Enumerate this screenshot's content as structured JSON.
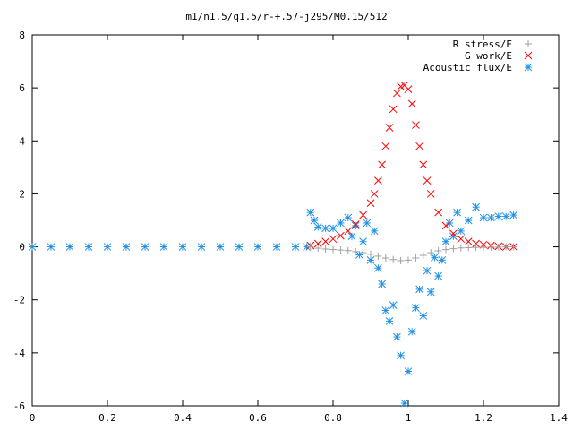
{
  "chart_data": {
    "type": "scatter",
    "title": "m1/n1.5/q1.5/r-+.57-j295/M0.15/512",
    "xlabel": "",
    "ylabel": "",
    "xlim": [
      0,
      1.4
    ],
    "ylim": [
      -6,
      8
    ],
    "x_ticks": [
      "0",
      "0.2",
      "0.4",
      "0.6",
      "0.8",
      "1",
      "1.2",
      "1.4"
    ],
    "y_ticks": [
      "-6",
      "-4",
      "-2",
      "0",
      "2",
      "4",
      "6",
      "8"
    ],
    "grid": false,
    "legend_position": "top-right",
    "series": [
      {
        "name": "R stress/E",
        "marker": "plus",
        "color": "#a0a0a0",
        "x": [
          0.74,
          0.76,
          0.78,
          0.8,
          0.82,
          0.84,
          0.86,
          0.88,
          0.9,
          0.92,
          0.94,
          0.96,
          0.98,
          1.0,
          1.02,
          1.04,
          1.06,
          1.08,
          1.1,
          1.12,
          1.14,
          1.16,
          1.18,
          1.2,
          1.22,
          1.24,
          1.26,
          1.28
        ],
        "y": [
          0.0,
          -0.05,
          -0.08,
          -0.1,
          -0.12,
          -0.14,
          -0.18,
          -0.22,
          -0.28,
          -0.35,
          -0.42,
          -0.48,
          -0.52,
          -0.5,
          -0.42,
          -0.32,
          -0.22,
          -0.15,
          -0.1,
          -0.07,
          -0.04,
          -0.03,
          -0.02,
          -0.02,
          -0.01,
          -0.01,
          0.0,
          0.0
        ]
      },
      {
        "name": "G work/E",
        "marker": "cross",
        "color": "#ff0000",
        "x": [
          0.74,
          0.76,
          0.78,
          0.8,
          0.82,
          0.84,
          0.86,
          0.88,
          0.9,
          0.91,
          0.92,
          0.93,
          0.94,
          0.95,
          0.96,
          0.97,
          0.98,
          0.99,
          1.0,
          1.01,
          1.02,
          1.03,
          1.04,
          1.05,
          1.06,
          1.08,
          1.1,
          1.12,
          1.14,
          1.16,
          1.18,
          1.2,
          1.22,
          1.24,
          1.26,
          1.28
        ],
        "y": [
          0.05,
          0.12,
          0.2,
          0.3,
          0.42,
          0.6,
          0.85,
          1.2,
          1.65,
          2.0,
          2.5,
          3.1,
          3.8,
          4.5,
          5.2,
          5.8,
          6.05,
          6.1,
          5.95,
          5.4,
          4.6,
          3.8,
          3.1,
          2.5,
          2.0,
          1.3,
          0.8,
          0.5,
          0.3,
          0.2,
          0.12,
          0.08,
          0.05,
          0.02,
          0.0,
          0.0
        ]
      },
      {
        "name": "Acoustic flux/E",
        "marker": "star",
        "color": "#1e90e6",
        "x": [
          0.0,
          0.05,
          0.1,
          0.15,
          0.2,
          0.25,
          0.3,
          0.35,
          0.4,
          0.45,
          0.5,
          0.55,
          0.6,
          0.65,
          0.7,
          0.73,
          0.74,
          0.75,
          0.76,
          0.78,
          0.8,
          0.82,
          0.84,
          0.85,
          0.86,
          0.87,
          0.88,
          0.89,
          0.9,
          0.91,
          0.92,
          0.93,
          0.94,
          0.95,
          0.96,
          0.97,
          0.98,
          0.99,
          1.0,
          1.01,
          1.02,
          1.03,
          1.04,
          1.05,
          1.06,
          1.07,
          1.08,
          1.09,
          1.1,
          1.11,
          1.12,
          1.13,
          1.14,
          1.16,
          1.18,
          1.2,
          1.22,
          1.24,
          1.26,
          1.28
        ],
        "y": [
          0.0,
          0.0,
          0.0,
          0.0,
          0.0,
          0.0,
          0.0,
          0.0,
          0.0,
          0.0,
          0.0,
          0.0,
          0.0,
          0.0,
          0.0,
          0.0,
          1.3,
          1.0,
          0.75,
          0.7,
          0.7,
          0.9,
          1.1,
          0.4,
          0.8,
          -0.3,
          0.2,
          0.9,
          -0.5,
          0.6,
          -0.8,
          -1.4,
          -2.4,
          -2.8,
          -2.2,
          -3.4,
          -4.1,
          -5.9,
          -4.7,
          -3.2,
          -2.3,
          -1.6,
          -2.6,
          -0.9,
          -1.7,
          -0.4,
          -1.1,
          -0.5,
          0.2,
          0.9,
          0.4,
          1.3,
          0.6,
          1.0,
          1.5,
          1.1,
          1.1,
          1.15,
          1.15,
          1.2
        ]
      }
    ]
  }
}
